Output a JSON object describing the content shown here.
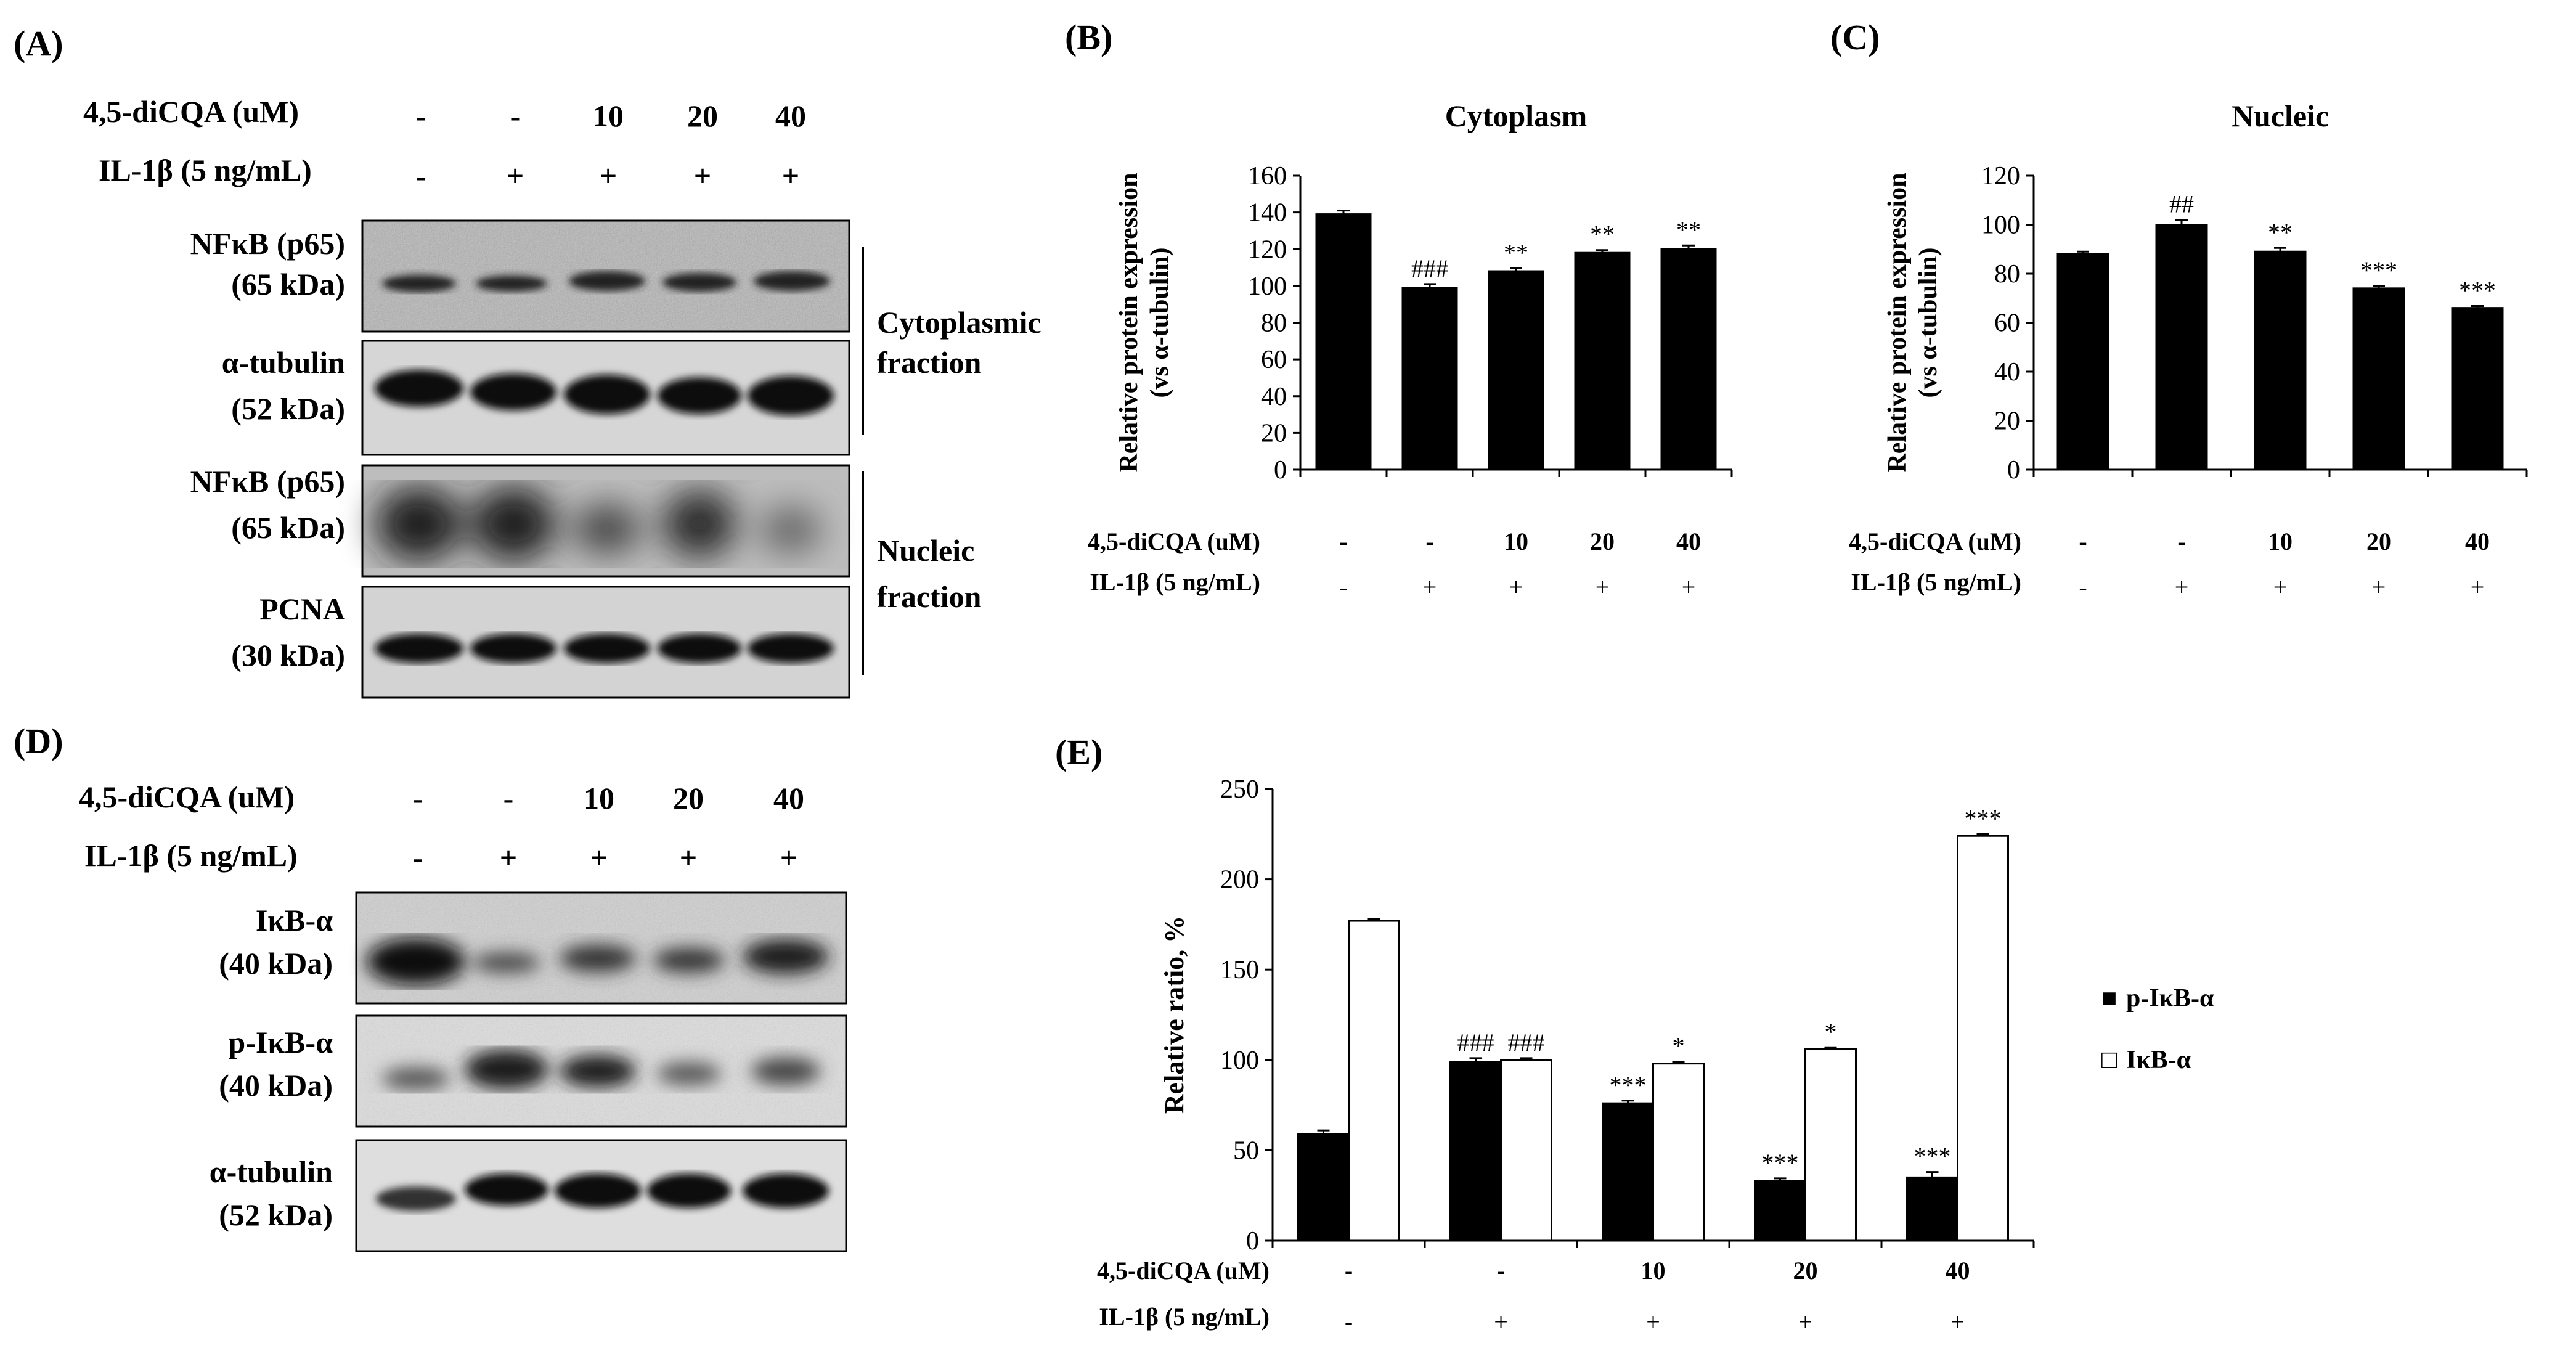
{
  "panels": {
    "A": {
      "letter": "(A)",
      "cond": {
        "dose_label": "4,5-diCQA (uM)",
        "doses": [
          "-",
          "-",
          "10",
          "20",
          "40"
        ],
        "il_label": "IL-1β (5 ng/mL)",
        "il": [
          "-",
          "+",
          "+",
          "+",
          "+"
        ]
      },
      "blots": [
        {
          "name": "NFκB (p65)",
          "kda": "(65 kDa)"
        },
        {
          "name": "α-tubulin",
          "kda": "(52 kDa)"
        },
        {
          "name": "NFκB (p65)",
          "kda": "(65 kDa)"
        },
        {
          "name": "PCNA",
          "kda": "(30 kDa)"
        }
      ],
      "fractions": [
        {
          "line1": "Cytoplasmic",
          "line2": "fraction"
        },
        {
          "line1": "Nucleic",
          "line2": "fraction"
        }
      ]
    },
    "B": {
      "letter": "(B)"
    },
    "C": {
      "letter": "(C)"
    },
    "D": {
      "letter": "(D)",
      "cond": {
        "dose_label": "4,5-diCQA (uM)",
        "doses": [
          "-",
          "-",
          "10",
          "20",
          "40"
        ],
        "il_label": "IL-1β (5 ng/mL)",
        "il": [
          "-",
          "+",
          "+",
          "+",
          "+"
        ]
      },
      "blots": [
        {
          "name": "IκB-α",
          "kda": "(40 kDa)"
        },
        {
          "name": "p-IκB-α",
          "kda": "(40 kDa)"
        },
        {
          "name": "α-tubulin",
          "kda": "(52 kDa)"
        }
      ]
    },
    "E": {
      "letter": "(E)"
    }
  },
  "chart_data": [
    {
      "id": "B",
      "type": "bar",
      "title": "Cytoplasm",
      "ylabel_line1": "Relative protein expression",
      "ylabel_line2": "(vs α-tubulin)",
      "ylim": [
        0,
        160
      ],
      "yticks": [
        0,
        20,
        40,
        60,
        80,
        100,
        120,
        140,
        160
      ],
      "categories": [
        "1",
        "2",
        "3",
        "4",
        "5"
      ],
      "values": [
        139,
        99,
        108,
        118,
        120
      ],
      "errors": [
        2,
        2,
        1.5,
        1.5,
        2
      ],
      "annotations": [
        "",
        "###",
        "**",
        "**",
        "**"
      ],
      "bar_color": "#000000",
      "cond_dose_label": "4,5-diCQA (uM)",
      "cond_doses": [
        "-",
        "-",
        "10",
        "20",
        "40"
      ],
      "cond_il_label": "IL-1β (5 ng/mL)",
      "cond_il": [
        "-",
        "+",
        "+",
        "+",
        "+"
      ]
    },
    {
      "id": "C",
      "type": "bar",
      "title": "Nucleic",
      "ylabel_line1": "Relative protein expression",
      "ylabel_line2": "(vs α-tubulin)",
      "ylim": [
        0,
        120
      ],
      "yticks": [
        0,
        20,
        40,
        60,
        80,
        100,
        120
      ],
      "categories": [
        "1",
        "2",
        "3",
        "4",
        "5"
      ],
      "values": [
        88,
        100,
        89,
        74,
        66
      ],
      "errors": [
        1,
        2,
        1.5,
        1,
        0.8
      ],
      "annotations": [
        "",
        "##",
        "**",
        "***",
        "***"
      ],
      "bar_color": "#000000",
      "cond_dose_label": "4,5-diCQA (uM)",
      "cond_doses": [
        "-",
        "-",
        "10",
        "20",
        "40"
      ],
      "cond_il_label": "IL-1β (5 ng/mL)",
      "cond_il": [
        "-",
        "+",
        "+",
        "+",
        "+"
      ]
    },
    {
      "id": "E",
      "type": "bar",
      "ylabel": "Relative ratio, %",
      "ylim": [
        0,
        250
      ],
      "yticks": [
        0,
        50,
        100,
        150,
        200,
        250
      ],
      "categories": [
        "1",
        "2",
        "3",
        "4",
        "5"
      ],
      "series": [
        {
          "name": "p-IκB-α",
          "color": "#000000",
          "values": [
            59,
            99,
            76,
            33,
            35
          ],
          "errors": [
            2,
            2,
            1.5,
            1.5,
            3
          ],
          "annotations": [
            "",
            "###",
            "***",
            "***",
            "***"
          ]
        },
        {
          "name": "IκB-α",
          "color": "#ffffff",
          "values": [
            177,
            100,
            98,
            106,
            224
          ],
          "errors": [
            1,
            1,
            1,
            1,
            1
          ],
          "annotations": [
            "",
            "###",
            "*",
            "*",
            "***"
          ]
        }
      ],
      "legend_markers": [
        "■",
        "□"
      ],
      "legend_position": "right",
      "cond_dose_label": "4,5-diCQA (uM)",
      "cond_doses": [
        "-",
        "-",
        "10",
        "20",
        "40"
      ],
      "cond_il_label": "IL-1β (5 ng/mL)",
      "cond_il": [
        "-",
        "+",
        "+",
        "+",
        "+"
      ]
    }
  ]
}
